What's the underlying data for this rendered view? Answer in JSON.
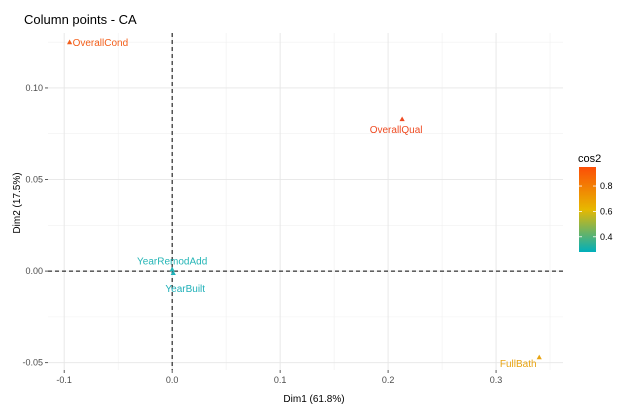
{
  "chart_data": {
    "type": "scatter",
    "title": "Column points - CA",
    "xlabel": "Dim1 (61.8%)",
    "ylabel": "Dim2 (17.5%)",
    "xlim": [
      -0.115,
      0.362
    ],
    "ylim": [
      -0.054,
      0.13
    ],
    "x_ticks": [
      -0.1,
      0.0,
      0.1,
      0.2,
      0.3
    ],
    "x_tick_labels": [
      "-0.1",
      "0.0",
      "0.1",
      "0.2",
      "0.3"
    ],
    "y_ticks": [
      -0.05,
      0.0,
      0.05,
      0.1
    ],
    "y_tick_labels": [
      "-0.05",
      "0.00",
      "0.05",
      "0.10"
    ],
    "grid": true,
    "reference_lines": {
      "x": 0,
      "y": 0,
      "style": "dashed"
    },
    "points": [
      {
        "label": "OverallCond",
        "x": -0.095,
        "y": 0.125,
        "cos2": 0.92,
        "color": "#F35F1B"
      },
      {
        "label": "OverallQual",
        "x": 0.213,
        "y": 0.083,
        "cos2": 0.88,
        "color": "#EF4B22"
      },
      {
        "label": "YearRemodAdd",
        "x": 0.0,
        "y": 0.001,
        "cos2": 0.3,
        "color": "#24B5B6"
      },
      {
        "label": "YearBuilt",
        "x": 0.001,
        "y": -0.001,
        "cos2": 0.3,
        "color": "#1FB0B8"
      },
      {
        "label": "FullBath",
        "x": 0.34,
        "y": -0.047,
        "cos2": 0.62,
        "color": "#E8A413"
      }
    ],
    "legend": {
      "title": "cos2",
      "position": "right",
      "ticks": [
        0.8,
        0.6,
        0.4
      ],
      "tick_labels": [
        "0.8",
        "0.6",
        "0.4"
      ],
      "range": [
        0.28,
        0.95
      ],
      "gradient_stops": [
        "#00AFBB",
        "#E7B800",
        "#FC4E07"
      ]
    }
  }
}
